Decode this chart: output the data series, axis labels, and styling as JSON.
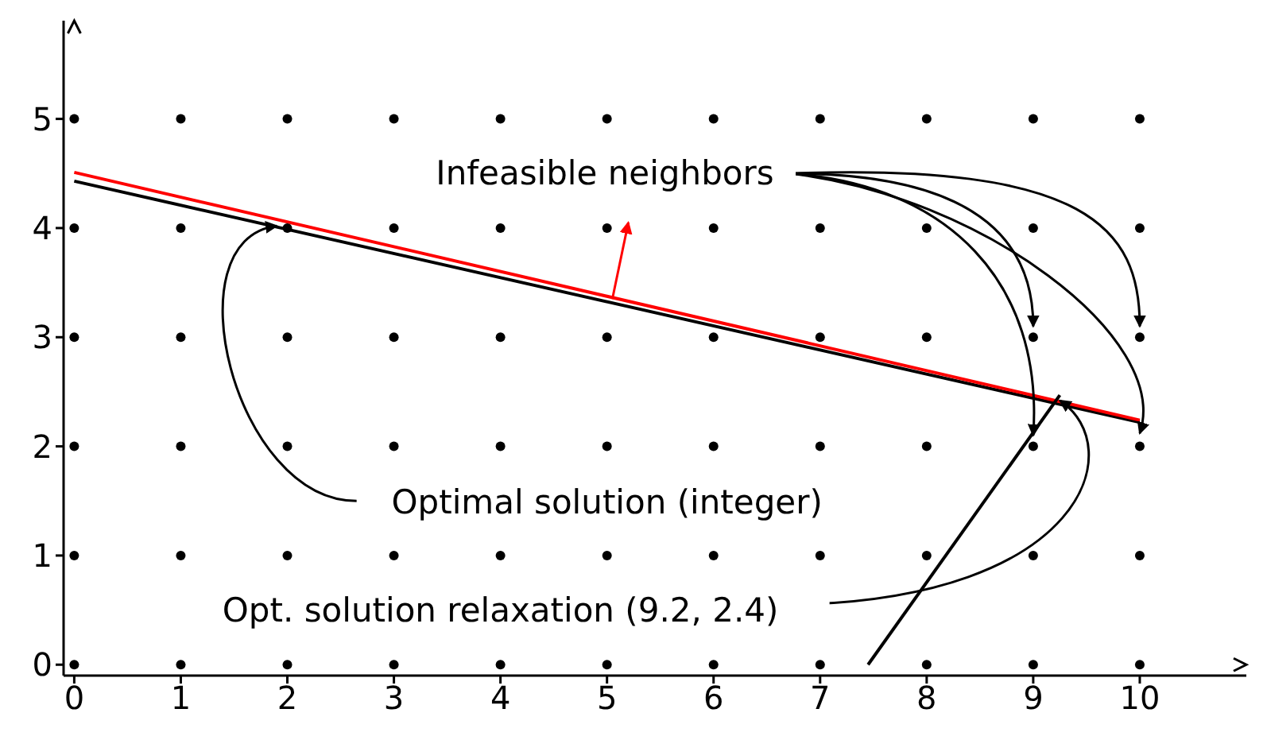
{
  "chart_data": {
    "type": "scatter",
    "xlim": [
      -0.1,
      11
    ],
    "ylim": [
      -0.1,
      5.9
    ],
    "xticks": [
      0,
      1,
      2,
      3,
      4,
      5,
      6,
      7,
      8,
      9,
      10
    ],
    "yticks": [
      0,
      1,
      2,
      3,
      4,
      5
    ],
    "series": [
      {
        "color": "#000000",
        "x": [
          0,
          1,
          2,
          3,
          4,
          5,
          6,
          7,
          8,
          9,
          10,
          0,
          1,
          2,
          3,
          4,
          5,
          6,
          7,
          8,
          9,
          10,
          0,
          1,
          2,
          3,
          4,
          5,
          6,
          7,
          8,
          9,
          10,
          0,
          1,
          2,
          3,
          4,
          5,
          6,
          7,
          8,
          9,
          10,
          0,
          1,
          2,
          3,
          4,
          5,
          6,
          7,
          8,
          9,
          10,
          0,
          1,
          2,
          3,
          4,
          5,
          6,
          7,
          8,
          9,
          10
        ],
        "values": [
          0,
          0,
          0,
          0,
          0,
          0,
          0,
          0,
          0,
          0,
          0,
          1,
          1,
          1,
          1,
          1,
          1,
          1,
          1,
          1,
          1,
          1,
          2,
          2,
          2,
          2,
          2,
          2,
          2,
          2,
          2,
          2,
          2,
          3,
          3,
          3,
          3,
          3,
          3,
          3,
          3,
          3,
          3,
          3,
          4,
          4,
          4,
          4,
          4,
          4,
          4,
          4,
          4,
          4,
          4,
          5,
          5,
          5,
          5,
          5,
          5,
          5,
          5,
          5,
          5,
          5
        ]
      },
      {
        "type": "line",
        "color": "#000000",
        "x": [
          0,
          10
        ],
        "values": [
          4.43,
          2.22
        ]
      },
      {
        "type": "line",
        "color": "#ff0000",
        "x": [
          0,
          10
        ],
        "values": [
          4.51,
          2.24
        ]
      },
      {
        "type": "line",
        "color": "#000000",
        "x": [
          7.45,
          9.25
        ],
        "values": [
          0,
          2.47
        ]
      }
    ],
    "annotations": [
      {
        "text": "Infeasible neighbors",
        "x": 9,
        "y": 3
      },
      {
        "text": "Optimal solution (integer)",
        "x": 2,
        "y": 4
      },
      {
        "text": "Opt. solution relaxation (9.2, 2.4)",
        "x": 9.2,
        "y": 2.4
      }
    ]
  }
}
